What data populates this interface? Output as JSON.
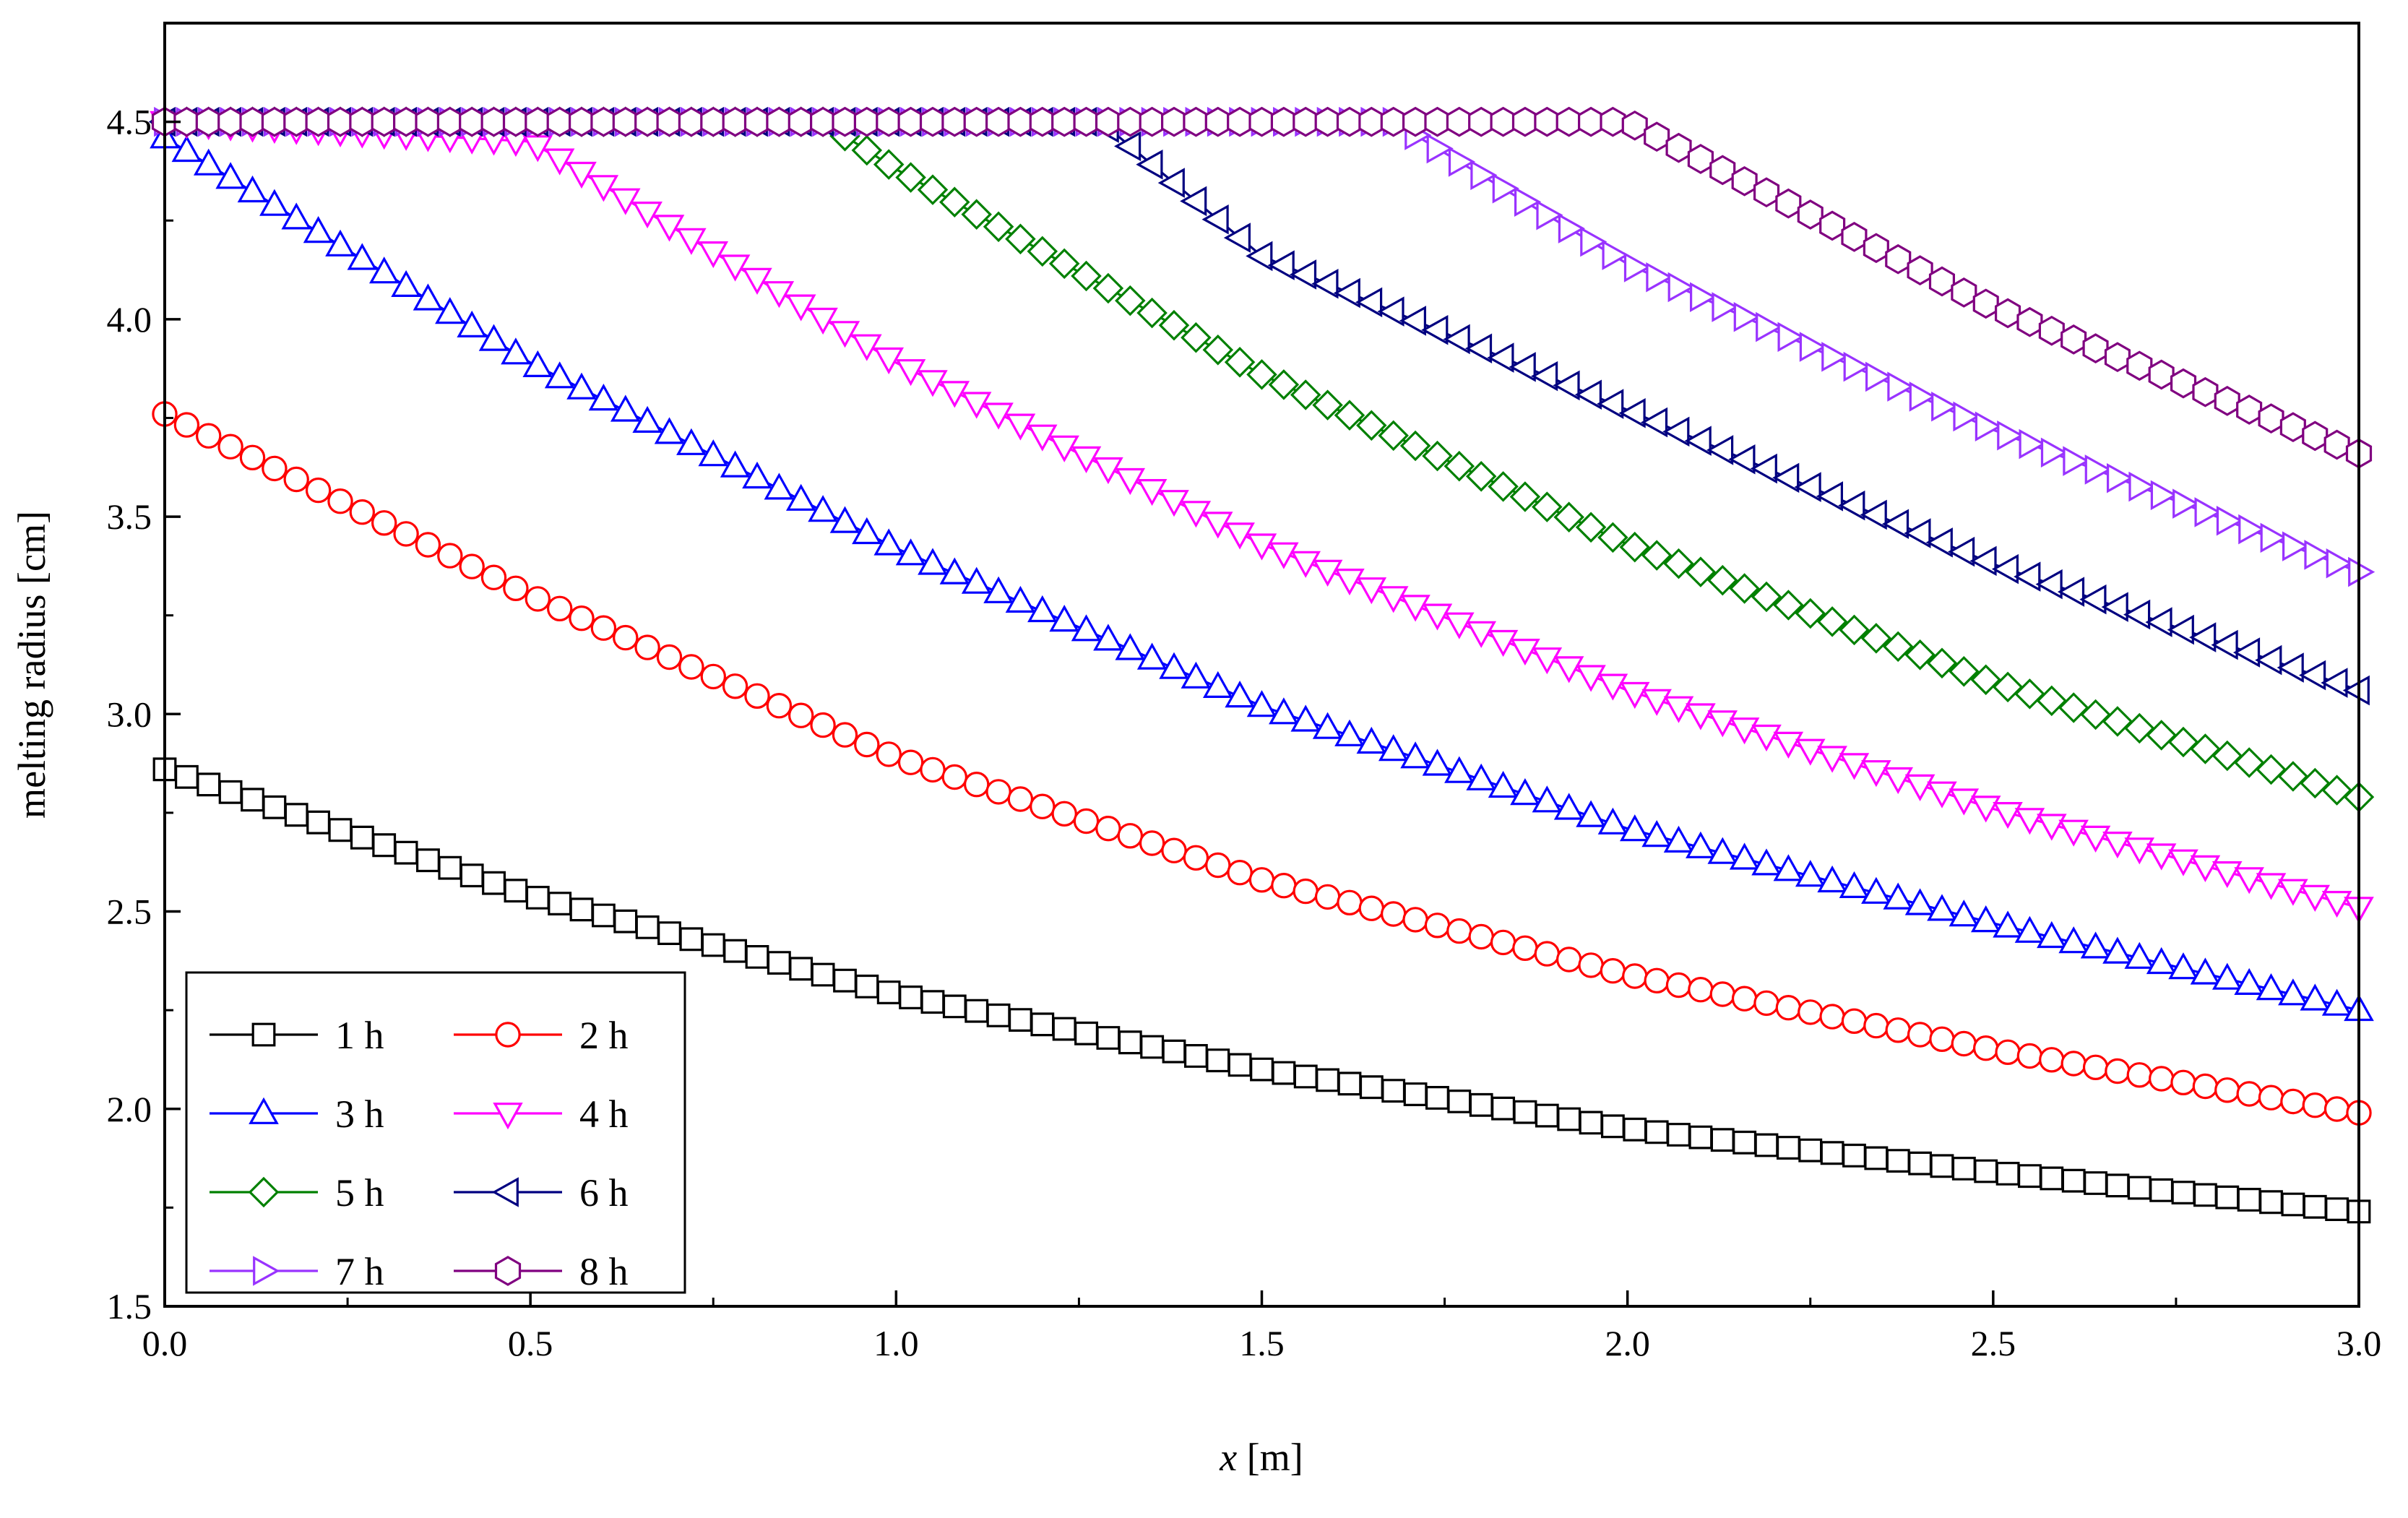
{
  "chart_data": {
    "type": "line",
    "xlabel_var": "x",
    "xlabel_unit": "[m]",
    "ylabel": "melting radius [cm]",
    "xlim": [
      0,
      3.0
    ],
    "ylim": [
      1.5,
      4.75
    ],
    "xticks": [
      "0.0",
      "0.5",
      "1.0",
      "1.5",
      "2.0",
      "2.5",
      "3.0"
    ],
    "yticks": [
      "1.5",
      "2.0",
      "2.5",
      "3.0",
      "3.5",
      "4.0",
      "4.5"
    ],
    "grid": false,
    "legend_position": "bottom-left",
    "series": [
      {
        "name": "1 h",
        "color": "#000000",
        "marker": "square",
        "points": [
          [
            0.0,
            2.86
          ],
          [
            0.5,
            2.54
          ],
          [
            1.0,
            2.29
          ],
          [
            1.5,
            2.1
          ],
          [
            2.0,
            1.95
          ],
          [
            2.5,
            1.84
          ],
          [
            3.0,
            1.74
          ]
        ]
      },
      {
        "name": "2 h",
        "color": "#ff0000",
        "marker": "circle",
        "points": [
          [
            0.0,
            3.76
          ],
          [
            0.5,
            3.3
          ],
          [
            1.0,
            2.89
          ],
          [
            1.5,
            2.58
          ],
          [
            2.0,
            2.34
          ],
          [
            2.5,
            2.15
          ],
          [
            3.0,
            1.99
          ]
        ]
      },
      {
        "name": "3 h",
        "color": "#0000ff",
        "marker": "triangle-up",
        "points": [
          [
            0.0,
            4.46
          ],
          [
            0.5,
            3.89
          ],
          [
            1.0,
            3.42
          ],
          [
            1.5,
            3.02
          ],
          [
            2.0,
            2.71
          ],
          [
            2.5,
            2.47
          ],
          [
            3.0,
            2.25
          ]
        ]
      },
      {
        "name": "4 h",
        "color": "#ff00ff",
        "marker": "triangle-down",
        "points": [
          [
            0.0,
            4.5
          ],
          [
            0.5,
            4.45
          ],
          [
            1.0,
            3.89
          ],
          [
            1.5,
            3.43
          ],
          [
            2.0,
            3.06
          ],
          [
            2.5,
            2.76
          ],
          [
            3.0,
            2.51
          ]
        ]
      },
      {
        "name": "5 h",
        "color": "#008000",
        "marker": "diamond",
        "points": [
          [
            0.0,
            4.5
          ],
          [
            0.9,
            4.5
          ],
          [
            1.0,
            4.38
          ],
          [
            1.5,
            3.86
          ],
          [
            2.0,
            3.43
          ],
          [
            2.5,
            3.08
          ],
          [
            3.0,
            2.79
          ]
        ]
      },
      {
        "name": "6 h",
        "color": "#000080",
        "marker": "triangle-left",
        "points": [
          [
            0.0,
            4.5
          ],
          [
            1.28,
            4.5
          ],
          [
            1.5,
            4.16
          ],
          [
            2.0,
            3.77
          ],
          [
            2.5,
            3.38
          ],
          [
            3.0,
            3.06
          ]
        ]
      },
      {
        "name": "7 h",
        "color": "#9933ff",
        "marker": "triangle-right",
        "points": [
          [
            0.0,
            4.5
          ],
          [
            1.68,
            4.5
          ],
          [
            2.0,
            4.14
          ],
          [
            2.5,
            3.72
          ],
          [
            3.0,
            3.36
          ]
        ]
      },
      {
        "name": "8 h",
        "color": "#800080",
        "marker": "hexagon",
        "points": [
          [
            0.0,
            4.5
          ],
          [
            2.0,
            4.5
          ],
          [
            2.5,
            4.03
          ],
          [
            3.0,
            3.66
          ]
        ]
      }
    ]
  }
}
